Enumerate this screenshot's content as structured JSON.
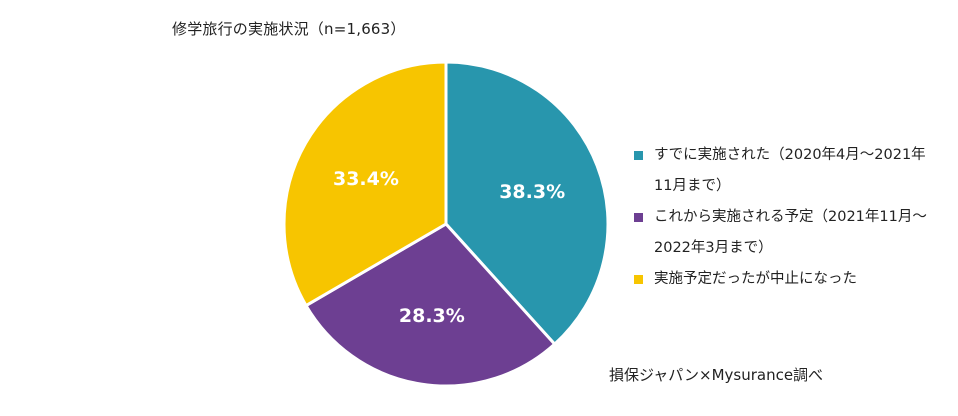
{
  "title": "修学旅行の実施状況（n=1,663）",
  "source": "損保ジャパン×Mysurance調べ",
  "chart_data": {
    "type": "pie",
    "title": "修学旅行の実施状況（n=1,663）",
    "start_angle_deg": 0,
    "direction": "clockwise",
    "slices": [
      {
        "label": "すでに実施された（2020年4月〜2021年11月まで）",
        "value": 38.3,
        "value_label": "38.3%",
        "color": "#2896ad"
      },
      {
        "label": "これから実施される予定（2021年11月〜2022年3月まで）",
        "value": 28.3,
        "value_label": "28.3%",
        "color": "#6d3f92"
      },
      {
        "label": "実施予定だったが中止になった",
        "value": 33.4,
        "value_label": "33.4%",
        "color": "#f7c500"
      }
    ],
    "legend_position": "right"
  }
}
